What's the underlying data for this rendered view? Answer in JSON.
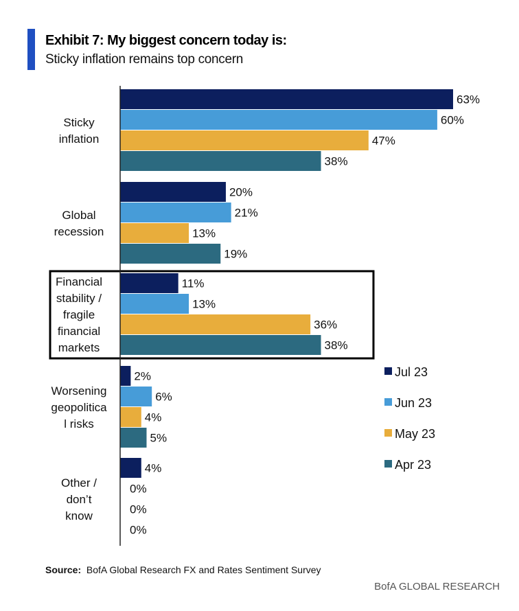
{
  "header": {
    "title": "Exhibit 7: My biggest concern today is:",
    "subtitle": "Sticky inflation remains top concern"
  },
  "footer": {
    "source_label": "Source:",
    "source_text": "BofA Global Research FX and Rates Sentiment Survey",
    "brand": "BofA GLOBAL RESEARCH"
  },
  "chart_data": {
    "type": "bar",
    "orientation": "horizontal",
    "title": "Exhibit 7: My biggest concern today is:",
    "subtitle": "Sticky inflation remains top concern",
    "categories": [
      [
        "Sticky",
        "inflation"
      ],
      [
        "Global",
        "recession"
      ],
      [
        "Financial",
        "stability /",
        "fragile",
        "financial",
        "markets"
      ],
      [
        "Worsening",
        "geopolitica",
        "l risks"
      ],
      [
        "Other /",
        "don’t",
        "know"
      ]
    ],
    "series": [
      {
        "name": "Jul 23",
        "color": "#0c1f5e",
        "values": [
          63,
          20,
          11,
          2,
          4
        ]
      },
      {
        "name": "Jun 23",
        "color": "#479cd8",
        "values": [
          60,
          21,
          13,
          6,
          0
        ]
      },
      {
        "name": "May 23",
        "color": "#e8ad3c",
        "values": [
          47,
          13,
          36,
          4,
          0
        ]
      },
      {
        "name": "Apr 23",
        "color": "#2c6a80",
        "values": [
          38,
          19,
          38,
          5,
          0
        ]
      }
    ],
    "value_format": "percent",
    "xlim": [
      0,
      65
    ],
    "grid": false,
    "legend": "right",
    "highlighted_category": "Financial stability / fragile financial markets"
  }
}
